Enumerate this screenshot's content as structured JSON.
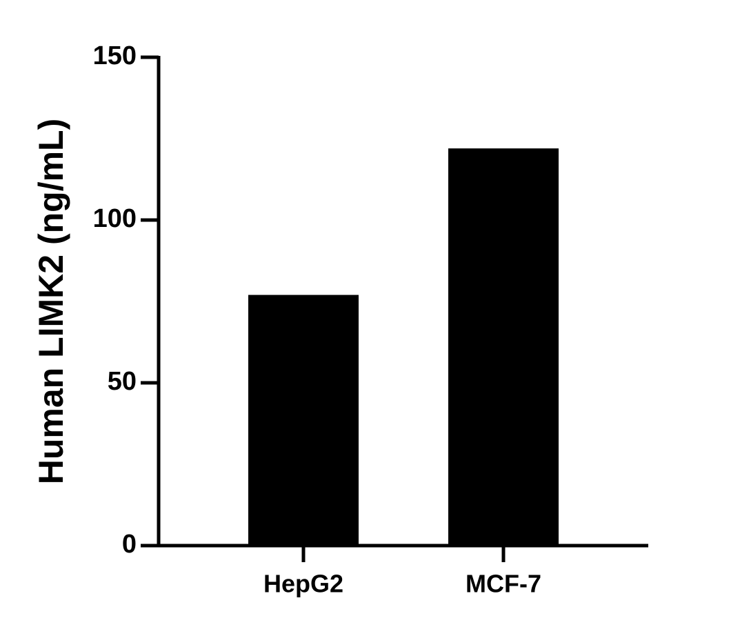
{
  "chart_data": {
    "type": "bar",
    "y_label": "Human LIMK2 (ng/mL)",
    "categories": [
      "HepG2",
      "MCF-7"
    ],
    "values": [
      77,
      122
    ],
    "color": "#000000",
    "ylim": [
      0,
      150
    ],
    "yticks": [
      0,
      50,
      100,
      150
    ],
    "grid": false
  }
}
